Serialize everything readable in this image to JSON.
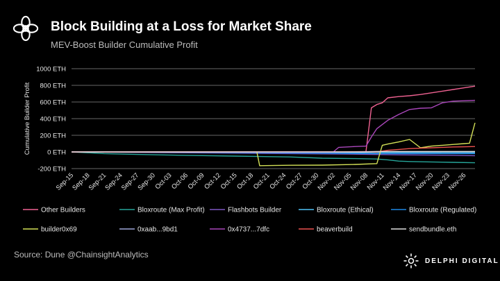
{
  "header": {
    "title": "Block Building at a Loss for Market Share",
    "subtitle": "MEV-Boost Builder Cumulative Profit"
  },
  "footer": {
    "source": "Source: Dune @ChainsightAnalytics",
    "brand": "DELPHI DIGITAL",
    "brand_logo_icon": "sun-ring-icon",
    "header_logo_icon": "flower-ring-icon"
  },
  "chart_data": {
    "type": "line",
    "title": "MEV-Boost Builder Cumulative Profit",
    "xlabel": "",
    "ylabel": "Cumulative Builder Profit",
    "ylim": [
      -200,
      1000
    ],
    "ytick_values": [
      -200,
      0,
      200,
      400,
      600,
      800,
      1000
    ],
    "ytick_labels": [
      "-200 ETH",
      "0 ETH",
      "200 ETH",
      "400 ETH",
      "600 ETH",
      "800 ETH",
      "1000 ETH"
    ],
    "xlim": [
      0,
      74
    ],
    "xtick_values": [
      0,
      3,
      6,
      9,
      12,
      15,
      18,
      21,
      24,
      27,
      30,
      33,
      36,
      39,
      42,
      45,
      48,
      51,
      54,
      57,
      60,
      63,
      66,
      69,
      72
    ],
    "xtick_labels": [
      "Sep-15",
      "Sep-18",
      "Sep-21",
      "Sep-24",
      "Sep-27",
      "Sep-30",
      "Oct-03",
      "Oct-06",
      "Oct-09",
      "Oct-12",
      "Oct-15",
      "Oct-18",
      "Oct-21",
      "Oct-24",
      "Oct-27",
      "Oct-30",
      "Nov-02",
      "Nov-05",
      "Nov-08",
      "Nov-11",
      "Nov-14",
      "Nov-17",
      "Nov-20",
      "Nov-23",
      "Nov-26"
    ],
    "grid": true,
    "legend_position": "bottom",
    "series": [
      {
        "name": "Other Builders",
        "color": "#f06292",
        "x": [
          0,
          50,
          54,
          55,
          56,
          57,
          58,
          60,
          62,
          64,
          66,
          68,
          70,
          72,
          74
        ],
        "y": [
          0,
          2,
          5,
          530,
          570,
          590,
          650,
          665,
          675,
          690,
          710,
          730,
          750,
          770,
          790
        ]
      },
      {
        "name": "Bloxroute (Max Profit)",
        "color": "#26a69a",
        "x": [
          0,
          6,
          12,
          20,
          30,
          40,
          46,
          52,
          56,
          58,
          60,
          62,
          66,
          70,
          74
        ],
        "y": [
          0,
          -20,
          -30,
          -40,
          -50,
          -60,
          -75,
          -80,
          -85,
          -95,
          -110,
          -115,
          -120,
          -125,
          -130
        ]
      },
      {
        "name": "Flashbots Builder",
        "color": "#7e57c2",
        "x": [
          0,
          10,
          20,
          30,
          40,
          50,
          60,
          70,
          74
        ],
        "y": [
          0,
          -5,
          -10,
          -15,
          -20,
          -25,
          -35,
          -40,
          -45
        ]
      },
      {
        "name": "Bloxroute (Ethical)",
        "color": "#4fc3f7",
        "x": [
          0,
          20,
          40,
          60,
          74
        ],
        "y": [
          0,
          -3,
          -5,
          -8,
          -10
        ]
      },
      {
        "name": "Bloxroute (Regulated)",
        "color": "#1e88e5",
        "x": [
          0,
          20,
          40,
          56,
          60,
          74
        ],
        "y": [
          0,
          -5,
          -12,
          -20,
          -20,
          -20
        ]
      },
      {
        "name": "builder0x69",
        "color": "#d4e157",
        "x": [
          0,
          34,
          34.5,
          40,
          46,
          52,
          56,
          57,
          58,
          60,
          62,
          64,
          66,
          68,
          70,
          72,
          73,
          74
        ],
        "y": [
          0,
          0,
          -165,
          -160,
          -158,
          -150,
          -140,
          80,
          95,
          120,
          150,
          50,
          70,
          80,
          90,
          100,
          105,
          350
        ]
      },
      {
        "name": "0xaab...9bd1",
        "color": "#9fa8da",
        "x": [
          0,
          30,
          50,
          55,
          60,
          74
        ],
        "y": [
          0,
          0,
          0,
          5,
          5,
          5
        ]
      },
      {
        "name": "0x4737...7dfc",
        "color": "#ab47bc",
        "x": [
          0,
          48,
          49,
          52,
          54,
          55,
          56,
          58,
          60,
          62,
          64,
          66,
          68,
          70,
          72,
          74
        ],
        "y": [
          0,
          0,
          55,
          65,
          70,
          180,
          280,
          380,
          450,
          510,
          525,
          530,
          590,
          610,
          615,
          620
        ]
      },
      {
        "name": "beaverbuild",
        "color": "#ef5350",
        "x": [
          0,
          56,
          58,
          60,
          62,
          64,
          66,
          68,
          70,
          72,
          74
        ],
        "y": [
          0,
          0,
          20,
          30,
          40,
          45,
          50,
          55,
          60,
          62,
          65
        ]
      },
      {
        "name": "sendbundle.eth",
        "color": "#e0e0e0",
        "x": [
          0,
          40,
          54,
          56,
          60,
          74
        ],
        "y": [
          0,
          0,
          0,
          5,
          5,
          5
        ]
      }
    ]
  }
}
